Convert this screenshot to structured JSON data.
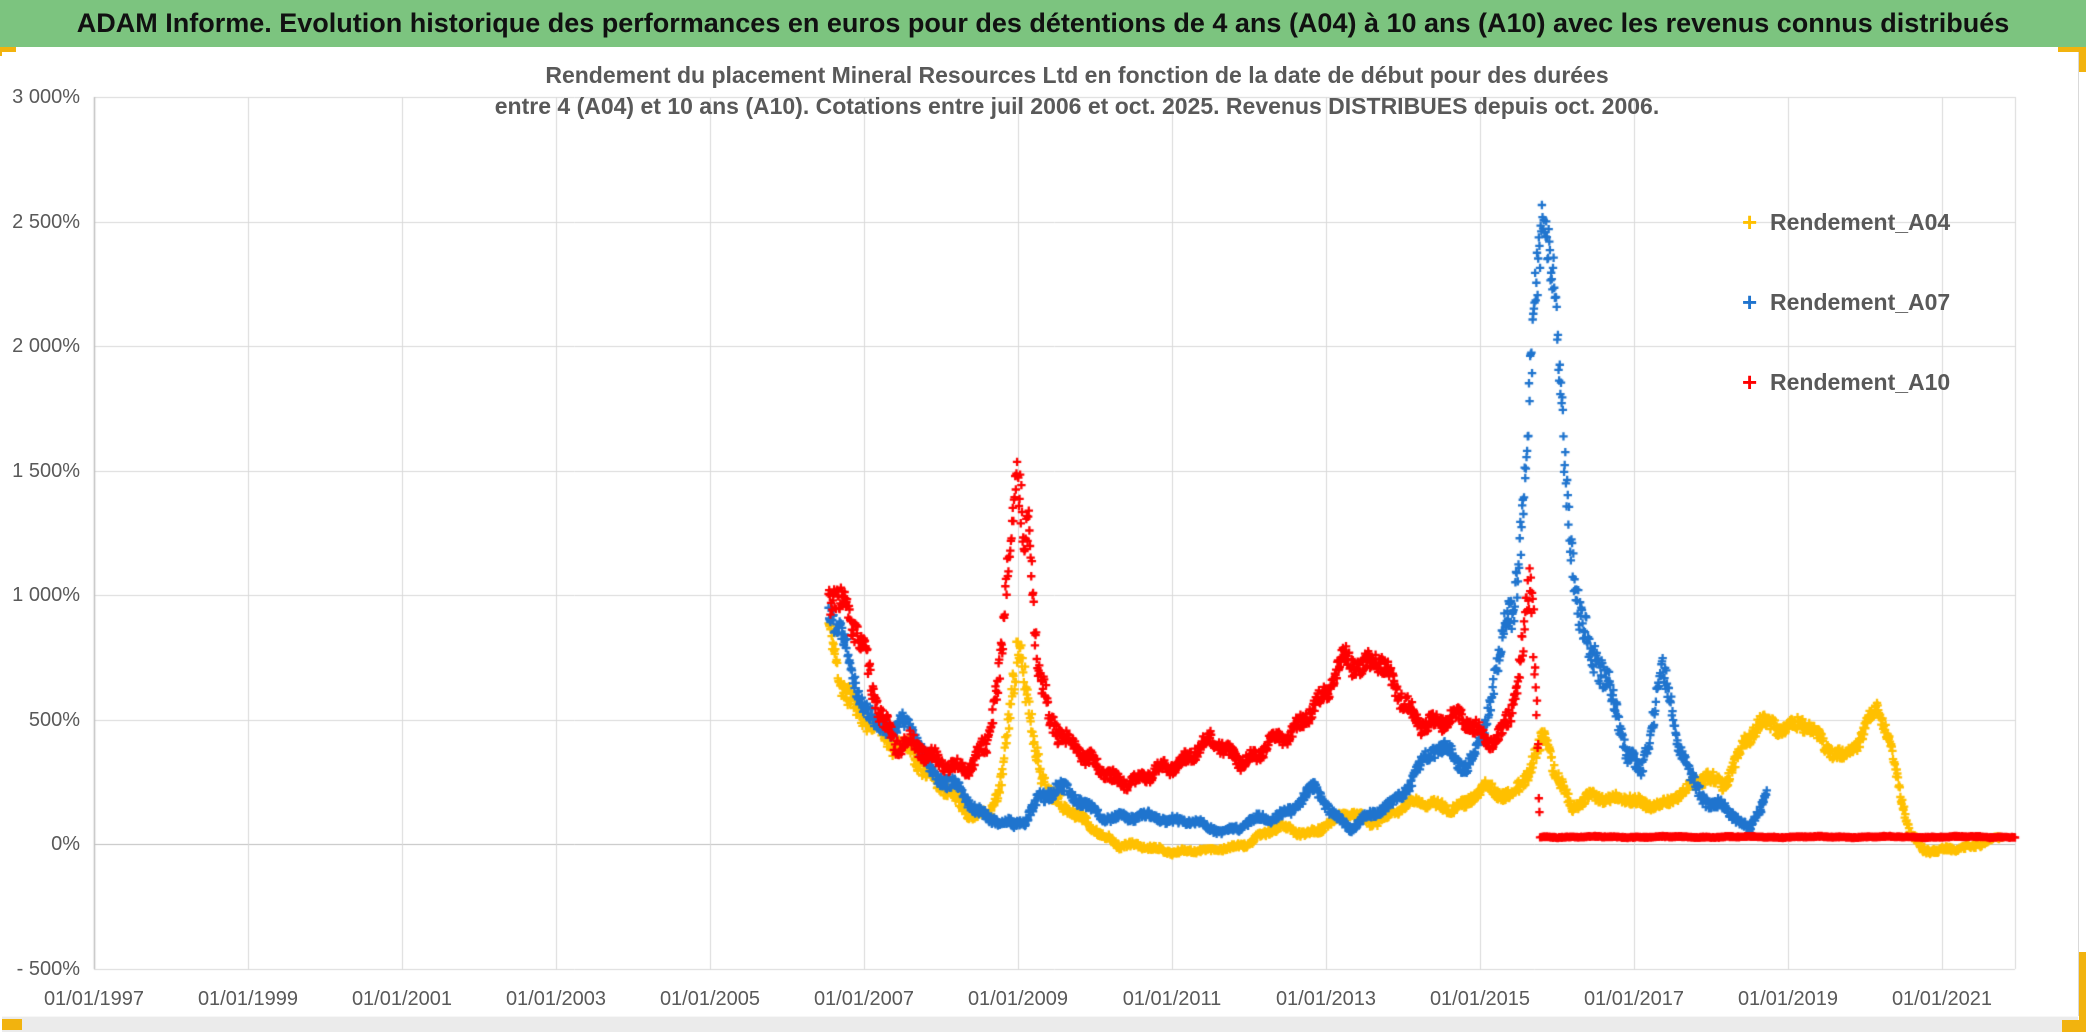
{
  "banner": {
    "title": "ADAM Informe. Evolution historique des performances en euros pour des détentions de 4 ans (A04) à 10 ans (A10) avec les revenus connus distribués",
    "bg_color": "#7CC47F",
    "text_color": "#111111"
  },
  "chart": {
    "title_line1": "Rendement du placement Mineral Resources Ltd en fonction de la date de début pour des durées",
    "title_line2": "entre 4 (A04) et 10 ans (A10). Cotations entre juil 2006 et oct. 2025. Revenus DISTRIBUES depuis oct. 2006.",
    "title_color": "#595959",
    "accent_gold": "#F2B30E",
    "grid_color": "#D9D9D9",
    "axis_color": "#BFBFBF",
    "zero_line_color": "#BDBDBD",
    "label_color": "#595959"
  },
  "chart_data": {
    "type": "scatter",
    "marker": "plus",
    "value_format": "percent",
    "x_axis": {
      "start_year": 1997,
      "tick_interval_years": 2,
      "labels": [
        "01/01/1997",
        "01/01/1999",
        "01/01/2001",
        "01/01/2003",
        "01/01/2005",
        "01/01/2007",
        "01/01/2009",
        "01/01/2011",
        "01/01/2013",
        "01/01/2015",
        "01/01/2017",
        "01/01/2019",
        "01/01/2021"
      ]
    },
    "y_axis": {
      "min": -500,
      "max": 3000,
      "step": 500,
      "labels": [
        "3 000%",
        "2 500%",
        "2 000%",
        "1 500%",
        "1 000%",
        "500%",
        "0%",
        "- 500%"
      ]
    },
    "grid": true,
    "legend_position": "right",
    "series": [
      {
        "name": "Rendement_A04",
        "color": "#FFC000",
        "glyph": "+",
        "seed": 11,
        "wobble": {
          "w1": 7.3,
          "w2": 19.1,
          "p1": 1.2,
          "p2": 4.0
        },
        "anchors": [
          [
            2006.54,
            850,
            70
          ],
          [
            2006.7,
            700,
            80
          ],
          [
            2006.9,
            560,
            60
          ],
          [
            2007.1,
            470,
            55
          ],
          [
            2007.35,
            380,
            50
          ],
          [
            2007.6,
            420,
            50
          ],
          [
            2007.8,
            300,
            45
          ],
          [
            2008.0,
            220,
            40
          ],
          [
            2008.3,
            140,
            35
          ],
          [
            2008.6,
            130,
            30
          ],
          [
            2008.8,
            250,
            60
          ],
          [
            2008.93,
            550,
            120
          ],
          [
            2009.0,
            780,
            130
          ],
          [
            2009.07,
            650,
            150
          ],
          [
            2009.2,
            420,
            80
          ],
          [
            2009.4,
            240,
            50
          ],
          [
            2009.6,
            150,
            40
          ],
          [
            2009.8,
            90,
            30
          ],
          [
            2010.0,
            60,
            25
          ],
          [
            2010.3,
            10,
            20
          ],
          [
            2010.6,
            -15,
            15
          ],
          [
            2010.9,
            -25,
            15
          ],
          [
            2011.2,
            -20,
            15
          ],
          [
            2011.5,
            -30,
            12
          ],
          [
            2011.8,
            -10,
            15
          ],
          [
            2012.1,
            30,
            20
          ],
          [
            2012.4,
            60,
            20
          ],
          [
            2012.7,
            50,
            20
          ],
          [
            2013.0,
            80,
            25
          ],
          [
            2013.3,
            110,
            25
          ],
          [
            2013.6,
            100,
            25
          ],
          [
            2013.9,
            130,
            25
          ],
          [
            2014.2,
            160,
            25
          ],
          [
            2014.5,
            170,
            30
          ],
          [
            2014.8,
            150,
            30
          ],
          [
            2015.1,
            220,
            35
          ],
          [
            2015.4,
            210,
            35
          ],
          [
            2015.65,
            300,
            50
          ],
          [
            2015.85,
            400,
            60
          ],
          [
            2016.0,
            260,
            45
          ],
          [
            2016.2,
            170,
            35
          ],
          [
            2016.45,
            200,
            30
          ],
          [
            2016.7,
            160,
            28
          ],
          [
            2016.95,
            190,
            30
          ],
          [
            2017.2,
            170,
            28
          ],
          [
            2017.45,
            155,
            25
          ],
          [
            2017.7,
            215,
            30
          ],
          [
            2017.95,
            300,
            40
          ],
          [
            2018.15,
            240,
            35
          ],
          [
            2018.4,
            350,
            50
          ],
          [
            2018.6,
            480,
            50
          ],
          [
            2018.8,
            510,
            50
          ],
          [
            2019.0,
            480,
            45
          ],
          [
            2019.2,
            470,
            45
          ],
          [
            2019.45,
            400,
            40
          ],
          [
            2019.7,
            370,
            35
          ],
          [
            2019.95,
            420,
            40
          ],
          [
            2020.15,
            540,
            40
          ],
          [
            2020.3,
            420,
            45
          ],
          [
            2020.45,
            230,
            45
          ],
          [
            2020.6,
            60,
            30
          ],
          [
            2020.75,
            -20,
            20
          ],
          [
            2020.95,
            -35,
            15
          ],
          [
            2021.15,
            -20,
            15
          ],
          [
            2021.4,
            0,
            15
          ],
          [
            2021.6,
            15,
            12
          ],
          [
            2021.8,
            25,
            10
          ]
        ]
      },
      {
        "name": "Rendement_A07",
        "color": "#1F74CE",
        "glyph": "+",
        "seed": 22,
        "wobble": {
          "w1": 8.1,
          "w2": 17.7,
          "p1": 2.3,
          "p2": 0.7
        },
        "anchors": [
          [
            2006.54,
            930,
            80
          ],
          [
            2006.75,
            780,
            70
          ],
          [
            2006.95,
            620,
            60
          ],
          [
            2007.15,
            500,
            55
          ],
          [
            2007.4,
            430,
            50
          ],
          [
            2007.6,
            490,
            50
          ],
          [
            2007.85,
            330,
            45
          ],
          [
            2008.1,
            230,
            40
          ],
          [
            2008.4,
            160,
            35
          ],
          [
            2008.7,
            110,
            28
          ],
          [
            2008.95,
            60,
            25
          ],
          [
            2009.1,
            90,
            30
          ],
          [
            2009.3,
            210,
            40
          ],
          [
            2009.5,
            240,
            40
          ],
          [
            2009.7,
            180,
            35
          ],
          [
            2009.95,
            140,
            28
          ],
          [
            2010.2,
            120,
            25
          ],
          [
            2010.5,
            95,
            22
          ],
          [
            2010.8,
            120,
            25
          ],
          [
            2011.1,
            95,
            22
          ],
          [
            2011.4,
            70,
            20
          ],
          [
            2011.7,
            60,
            20
          ],
          [
            2012.0,
            80,
            22
          ],
          [
            2012.3,
            110,
            25
          ],
          [
            2012.6,
            160,
            30
          ],
          [
            2012.85,
            210,
            32
          ],
          [
            2013.1,
            120,
            30
          ],
          [
            2013.35,
            80,
            25
          ],
          [
            2013.6,
            110,
            25
          ],
          [
            2013.85,
            160,
            30
          ],
          [
            2014.1,
            270,
            40
          ],
          [
            2014.35,
            350,
            42
          ],
          [
            2014.6,
            380,
            42
          ],
          [
            2014.85,
            330,
            40
          ],
          [
            2015.05,
            450,
            55
          ],
          [
            2015.25,
            700,
            90
          ],
          [
            2015.45,
            1050,
            130
          ],
          [
            2015.6,
            1600,
            190
          ],
          [
            2015.72,
            2250,
            220
          ],
          [
            2015.82,
            2550,
            150
          ],
          [
            2015.95,
            2100,
            200
          ],
          [
            2016.1,
            1500,
            160
          ],
          [
            2016.3,
            950,
            130
          ],
          [
            2016.5,
            780,
            100
          ],
          [
            2016.7,
            550,
            80
          ],
          [
            2016.9,
            380,
            60
          ],
          [
            2017.1,
            310,
            50
          ],
          [
            2017.35,
            700,
            80
          ],
          [
            2017.55,
            420,
            60
          ],
          [
            2017.75,
            260,
            45
          ],
          [
            2017.95,
            200,
            38
          ],
          [
            2018.15,
            140,
            30
          ],
          [
            2018.35,
            90,
            25
          ],
          [
            2018.5,
            60,
            22
          ],
          [
            2018.62,
            150,
            30
          ],
          [
            2018.73,
            230,
            30
          ]
        ]
      },
      {
        "name": "Rendement_A10",
        "color": "#FF0000",
        "glyph": "+",
        "seed": 33,
        "wobble": {
          "w1": 6.6,
          "w2": 21.3,
          "p1": 0.4,
          "p2": 2.9
        },
        "anchors": [
          [
            2006.54,
            1080,
            100
          ],
          [
            2006.75,
            950,
            90
          ],
          [
            2006.95,
            780,
            85
          ],
          [
            2007.15,
            560,
            65
          ],
          [
            2007.4,
            430,
            55
          ],
          [
            2007.6,
            430,
            50
          ],
          [
            2007.85,
            330,
            45
          ],
          [
            2008.1,
            300,
            42
          ],
          [
            2008.35,
            330,
            45
          ],
          [
            2008.6,
            430,
            60
          ],
          [
            2008.8,
            700,
            110
          ],
          [
            2008.92,
            1280,
            180
          ],
          [
            2009.0,
            1420,
            150
          ],
          [
            2009.08,
            1150,
            160
          ],
          [
            2009.15,
            1280,
            140
          ],
          [
            2009.25,
            800,
            110
          ],
          [
            2009.4,
            550,
            75
          ],
          [
            2009.6,
            420,
            55
          ],
          [
            2009.85,
            330,
            45
          ],
          [
            2010.1,
            300,
            42
          ],
          [
            2010.35,
            270,
            38
          ],
          [
            2010.6,
            255,
            36
          ],
          [
            2010.85,
            280,
            40
          ],
          [
            2011.1,
            330,
            42
          ],
          [
            2011.3,
            400,
            42
          ],
          [
            2011.5,
            430,
            42
          ],
          [
            2011.7,
            350,
            40
          ],
          [
            2011.9,
            320,
            40
          ],
          [
            2012.1,
            370,
            40
          ],
          [
            2012.3,
            450,
            42
          ],
          [
            2012.5,
            420,
            42
          ],
          [
            2012.7,
            470,
            45
          ],
          [
            2012.9,
            560,
            52
          ],
          [
            2013.1,
            700,
            60
          ],
          [
            2013.25,
            790,
            62
          ],
          [
            2013.45,
            690,
            60
          ],
          [
            2013.65,
            720,
            60
          ],
          [
            2013.85,
            650,
            58
          ],
          [
            2014.05,
            580,
            52
          ],
          [
            2014.25,
            500,
            50
          ],
          [
            2014.5,
            470,
            46
          ],
          [
            2014.75,
            500,
            46
          ],
          [
            2015.0,
            470,
            46
          ],
          [
            2015.2,
            420,
            42
          ],
          [
            2015.4,
            520,
            65
          ],
          [
            2015.55,
            700,
            110
          ],
          [
            2015.66,
            1000,
            150
          ],
          [
            2015.73,
            650,
            320
          ],
          [
            2015.78,
            30,
            3
          ],
          [
            2021.95,
            30,
            3
          ]
        ]
      }
    ]
  }
}
